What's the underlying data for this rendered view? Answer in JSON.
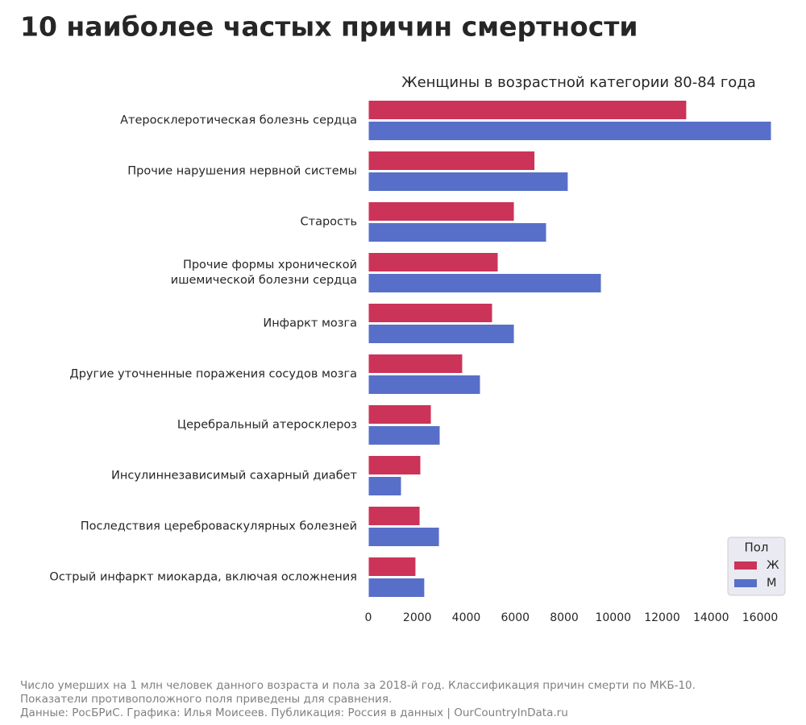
{
  "chart_data": {
    "type": "barh",
    "title": "10 наиболее частых причин смертности",
    "subtitle": "Женщины в возрастной категории 80-84 года",
    "categories": [
      "Атеросклеротическая болезнь сердца",
      "Прочие нарушения нервной системы",
      "Старость",
      "Прочие формы хронической\nишемической болезни сердца",
      "Инфаркт мозга",
      "Другие уточненные поражения сосудов мозга",
      "Церебральный атеросклероз",
      "Инсулиннезависимый сахарный диабет",
      "Последствия цереброваскулярных болезней",
      "Острый инфаркт миокарда, включая осложнения"
    ],
    "series": [
      {
        "name": "Ж",
        "color": "#cc3358",
        "values": [
          13000,
          6800,
          5960,
          5300,
          5070,
          3850,
          2570,
          2140,
          2110,
          1940
        ]
      },
      {
        "name": "М",
        "color": "#576fc9",
        "values": [
          16460,
          8160,
          7275,
          9515,
          5960,
          4575,
          2930,
          1350,
          2900,
          2300
        ]
      }
    ],
    "xlim": [
      0,
      16460
    ],
    "xticks": [
      0,
      2000,
      4000,
      6000,
      8000,
      10000,
      12000,
      14000,
      16000
    ],
    "legend_title": "Пол",
    "legend_position": "lower right",
    "footer": [
      "Число умерших на 1 млн человек данного возраста и пола за 2018-й год. Классификация причин смерти по МКБ-10.",
      "Показатели противоположного поля приведены для сравнения.",
      "Данные: РосБРиС. Графика: Илья Моисеев. Публикация: Россия в данных | OurCountryInData.ru"
    ]
  }
}
